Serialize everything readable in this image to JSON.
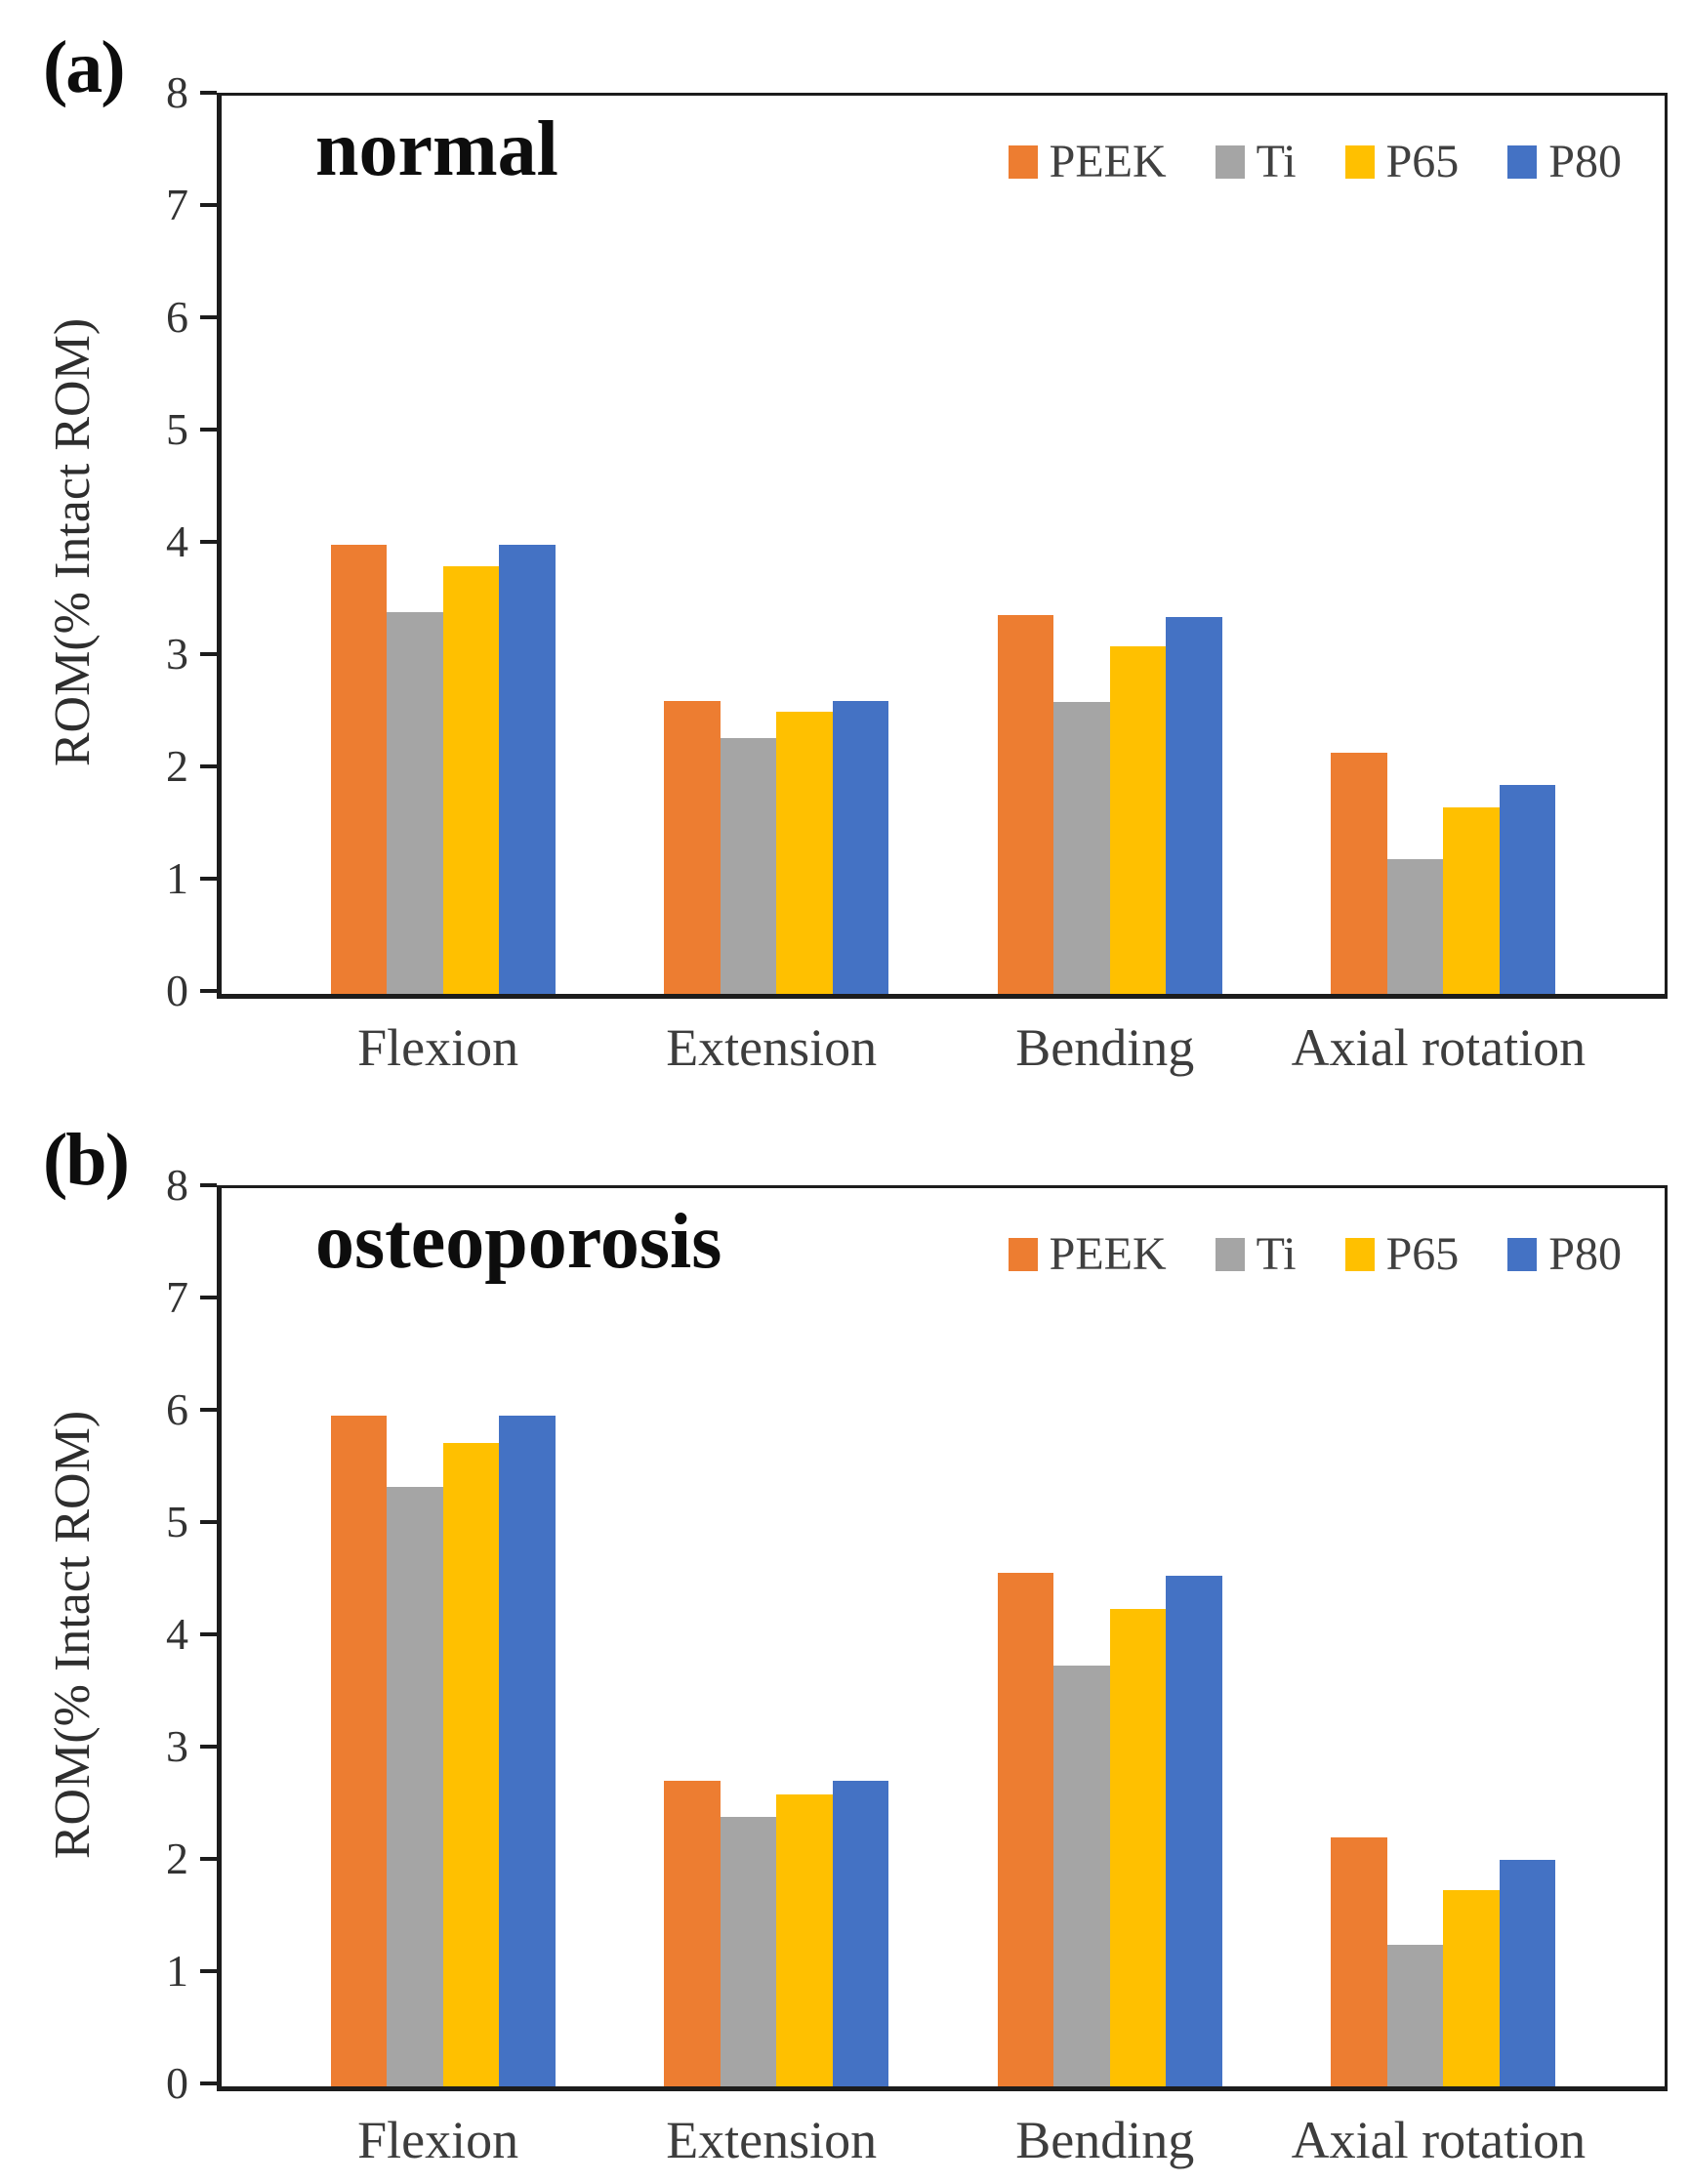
{
  "figure": {
    "background": "#ffffff",
    "axis_color": "#1c1c1c",
    "text_color": "#3d3d3d"
  },
  "chart_data": [
    {
      "type": "bar",
      "panel_label": "(a)",
      "title": "normal",
      "ylabel": "ROM(% Intact ROM)",
      "ylim": [
        0,
        8
      ],
      "y_ticks": [
        8,
        7,
        6,
        5,
        4,
        3,
        2,
        1,
        0
      ],
      "grid": false,
      "legend_position": "top-right",
      "categories": [
        "Flexion",
        "Extension",
        "Bending",
        "Axial rotation"
      ],
      "series": [
        {
          "name": "PEEK",
          "color": "#ED7D31",
          "values": [
            4.0,
            2.61,
            3.37,
            2.15
          ]
        },
        {
          "name": "Ti",
          "color": "#A5A5A5",
          "values": [
            3.4,
            2.28,
            2.6,
            1.2
          ]
        },
        {
          "name": "P65",
          "color": "#FFC000",
          "values": [
            3.81,
            2.51,
            3.1,
            1.66
          ]
        },
        {
          "name": "P80",
          "color": "#4472C4",
          "values": [
            4.0,
            2.61,
            3.36,
            1.86
          ]
        }
      ]
    },
    {
      "type": "bar",
      "panel_label": "(b)",
      "title": "osteoporosis",
      "ylabel": "ROM(% Intact ROM)",
      "ylim": [
        0,
        8
      ],
      "y_ticks": [
        8,
        7,
        6,
        5,
        4,
        3,
        2,
        1,
        0
      ],
      "grid": false,
      "legend_position": "top-right",
      "categories": [
        "Flexion",
        "Extension",
        "Bending",
        "Axial rotation"
      ],
      "series": [
        {
          "name": "PEEK",
          "color": "#ED7D31",
          "values": [
            5.97,
            2.72,
            4.57,
            2.22
          ]
        },
        {
          "name": "Ti",
          "color": "#A5A5A5",
          "values": [
            5.34,
            2.4,
            3.75,
            1.26
          ]
        },
        {
          "name": "P65",
          "color": "#FFC000",
          "values": [
            5.73,
            2.6,
            4.25,
            1.75
          ]
        },
        {
          "name": "P80",
          "color": "#4472C4",
          "values": [
            5.97,
            2.72,
            4.55,
            2.02
          ]
        }
      ]
    }
  ]
}
